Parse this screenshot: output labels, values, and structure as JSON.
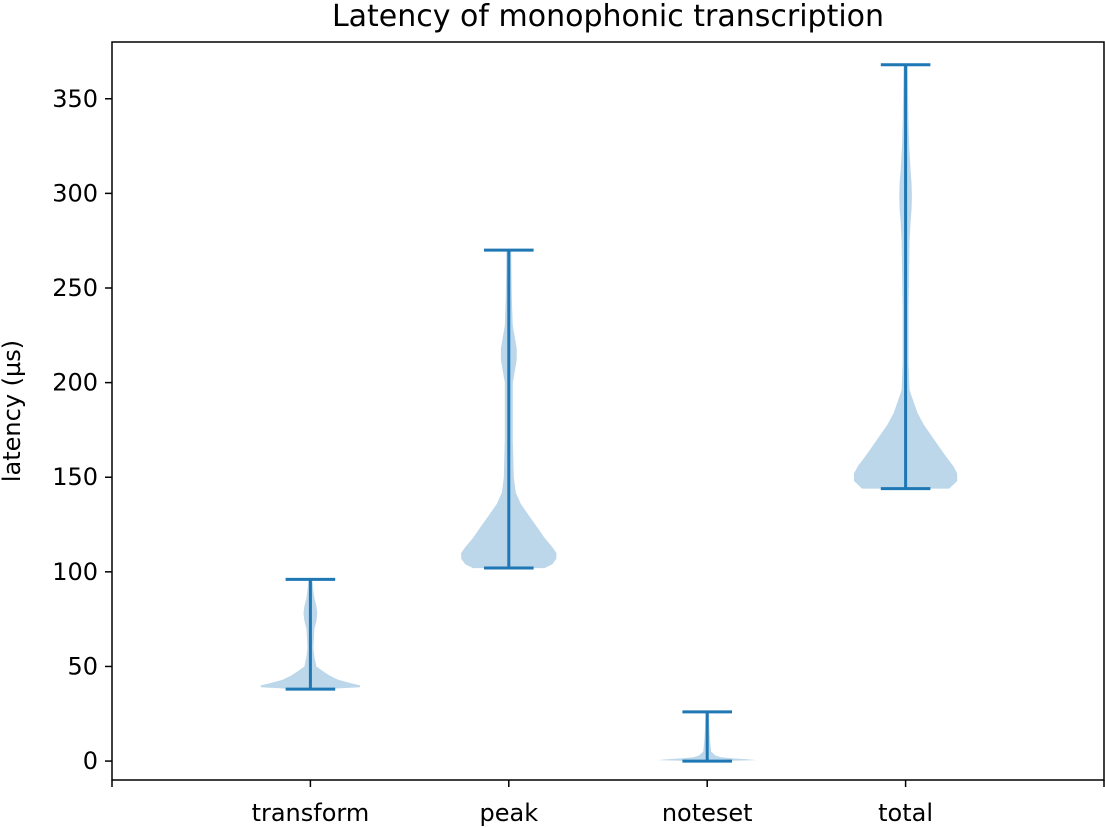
{
  "chart_data": {
    "type": "violin",
    "title": "Latency of monophonic transcription",
    "xlabel": "",
    "ylabel": "latency (µs)",
    "ylim": [
      -10,
      380
    ],
    "xlim": [
      0,
      5
    ],
    "yticks": [
      0,
      50,
      100,
      150,
      200,
      250,
      300,
      350
    ],
    "xticks": [
      0,
      1,
      2,
      3,
      4,
      5
    ],
    "categories": [
      "transform",
      "peak",
      "noteset",
      "total"
    ],
    "grid": false,
    "legend": "none",
    "colors": {
      "body": "#bcd7ea",
      "lines": "#1f77b4"
    },
    "series": [
      {
        "category": "transform",
        "min": 38,
        "max": 96,
        "profile": [
          [
            38,
            0.06
          ],
          [
            39,
            0.25
          ],
          [
            40,
            0.25
          ],
          [
            41,
            0.21
          ],
          [
            43,
            0.14
          ],
          [
            45,
            0.1
          ],
          [
            47,
            0.07
          ],
          [
            50,
            0.03
          ],
          [
            55,
            0.02
          ],
          [
            60,
            0.015
          ],
          [
            70,
            0.02
          ],
          [
            74,
            0.03
          ],
          [
            78,
            0.035
          ],
          [
            82,
            0.03
          ],
          [
            86,
            0.02
          ],
          [
            90,
            0.015
          ],
          [
            93,
            0.012
          ],
          [
            96,
            0.01
          ]
        ]
      },
      {
        "category": "peak",
        "min": 102,
        "max": 270,
        "profile": [
          [
            102,
            0.18
          ],
          [
            104,
            0.22
          ],
          [
            107,
            0.24
          ],
          [
            110,
            0.24
          ],
          [
            113,
            0.22
          ],
          [
            118,
            0.18
          ],
          [
            124,
            0.14
          ],
          [
            130,
            0.1
          ],
          [
            136,
            0.06
          ],
          [
            142,
            0.035
          ],
          [
            150,
            0.025
          ],
          [
            170,
            0.02
          ],
          [
            190,
            0.02
          ],
          [
            200,
            0.02
          ],
          [
            206,
            0.03
          ],
          [
            212,
            0.04
          ],
          [
            218,
            0.04
          ],
          [
            224,
            0.03
          ],
          [
            230,
            0.02
          ],
          [
            245,
            0.015
          ],
          [
            260,
            0.013
          ],
          [
            270,
            0.012
          ]
        ]
      },
      {
        "category": "noteset",
        "min": 0,
        "max": 26,
        "profile": [
          [
            0,
            0.05
          ],
          [
            0.5,
            0.25
          ],
          [
            1,
            0.2
          ],
          [
            1.5,
            0.12
          ],
          [
            2,
            0.07
          ],
          [
            3,
            0.04
          ],
          [
            5,
            0.02
          ],
          [
            10,
            0.015
          ],
          [
            15,
            0.012
          ],
          [
            20,
            0.01
          ],
          [
            26,
            0.008
          ]
        ]
      },
      {
        "category": "total",
        "min": 144,
        "max": 368,
        "profile": [
          [
            144,
            0.22
          ],
          [
            148,
            0.26
          ],
          [
            152,
            0.26
          ],
          [
            156,
            0.24
          ],
          [
            160,
            0.21
          ],
          [
            166,
            0.17
          ],
          [
            172,
            0.13
          ],
          [
            178,
            0.09
          ],
          [
            184,
            0.06
          ],
          [
            190,
            0.04
          ],
          [
            196,
            0.02
          ],
          [
            210,
            0.015
          ],
          [
            240,
            0.015
          ],
          [
            260,
            0.018
          ],
          [
            275,
            0.02
          ],
          [
            285,
            0.025
          ],
          [
            292,
            0.03
          ],
          [
            298,
            0.032
          ],
          [
            305,
            0.03
          ],
          [
            312,
            0.025
          ],
          [
            325,
            0.018
          ],
          [
            340,
            0.014
          ],
          [
            355,
            0.012
          ],
          [
            368,
            0.01
          ]
        ]
      }
    ]
  }
}
